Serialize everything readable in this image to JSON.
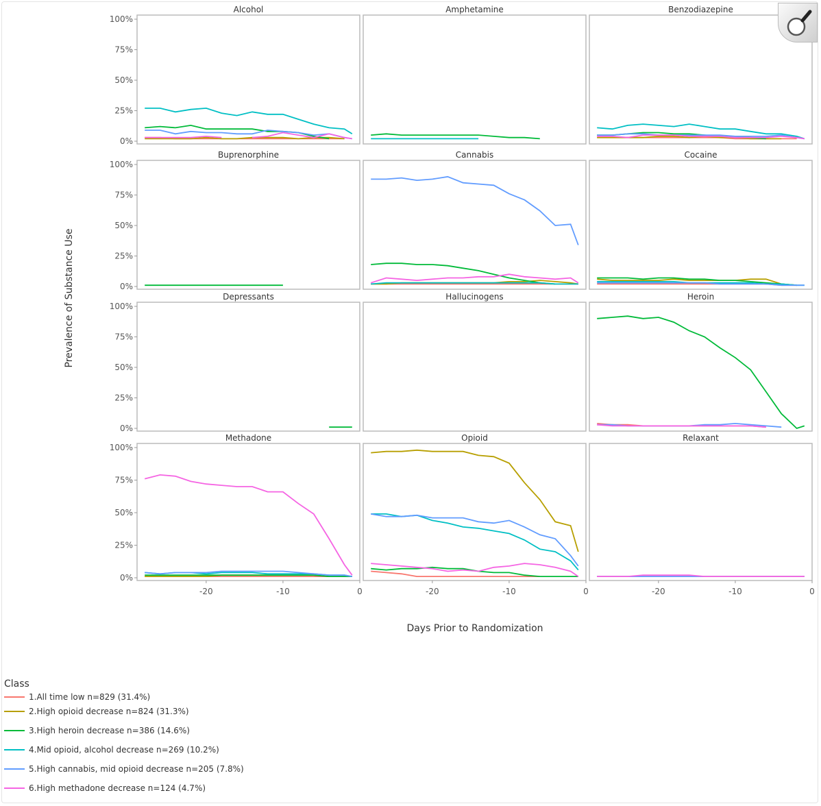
{
  "chart_data": {
    "type": "line",
    "xlabel": "Days Prior to Randomization",
    "ylabel": "Prevalence of Substance Use",
    "xlim": [
      -29,
      0
    ],
    "ylim": [
      0,
      100
    ],
    "xticks": [
      -20,
      -10,
      0
    ],
    "yticks": [
      "0%",
      "25%",
      "50%",
      "75%",
      "100%"
    ],
    "grid": false,
    "legend_placement": "bottom-left",
    "legend_title": "Class",
    "x": [
      -28,
      -26,
      -24,
      -22,
      -20,
      -18,
      -16,
      -14,
      -12,
      -10,
      -8,
      -6,
      -4,
      -2,
      -1
    ],
    "classes": [
      {
        "name": "1.All time low n=829 (31.4%)",
        "color": "#F8766D"
      },
      {
        "name": "2.High opioid decrease n=824 (31.3%)",
        "color": "#B79F00"
      },
      {
        "name": "3.High heroin decrease n=386 (14.6%)",
        "color": "#00BA38"
      },
      {
        "name": "4.Mid opioid, alcohol decrease n=269 (10.2%)",
        "color": "#00BFC4"
      },
      {
        "name": "5.High cannabis, mid opioid decrease n=205 (7.8%)",
        "color": "#619CFF"
      },
      {
        "name": "6.High methadone decrease n=124 (4.7%)",
        "color": "#F564E3"
      }
    ],
    "panels": [
      {
        "title": "Alcohol",
        "series": [
          [
            3,
            3,
            2,
            2,
            2,
            2,
            2,
            2,
            2,
            2,
            2,
            2,
            2,
            2,
            null
          ],
          [
            2,
            2,
            2,
            2,
            3,
            2,
            2,
            3,
            3,
            3,
            2,
            3,
            3,
            2,
            null
          ],
          [
            11,
            12,
            11,
            13,
            10,
            10,
            10,
            10,
            8,
            8,
            7,
            4,
            2,
            null,
            null
          ],
          [
            27,
            27,
            24,
            26,
            27,
            23,
            21,
            24,
            22,
            22,
            18,
            14,
            11,
            10,
            6
          ],
          [
            9,
            9,
            6,
            8,
            7,
            7,
            6,
            6,
            9,
            8,
            7,
            5,
            6,
            3,
            2
          ],
          [
            3,
            3,
            3,
            3,
            4,
            3,
            null,
            3,
            4,
            7,
            5,
            3,
            6,
            3,
            2
          ]
        ]
      },
      {
        "title": "Amphetamine",
        "series": [
          [
            null
          ],
          [
            null
          ],
          [
            5,
            6,
            5,
            5,
            5,
            5,
            5,
            5,
            4,
            3,
            3,
            2,
            null,
            null,
            null
          ],
          [
            2,
            2,
            2,
            2,
            2,
            2,
            2,
            2,
            null,
            null,
            null,
            null,
            null,
            null,
            null
          ],
          [
            null
          ],
          [
            null
          ]
        ]
      },
      {
        "title": "Benzodiazepine",
        "series": [
          [
            3,
            3,
            3,
            3,
            3,
            3,
            3,
            3,
            3,
            2,
            2,
            2,
            2,
            2,
            null
          ],
          [
            3,
            3,
            3,
            3,
            4,
            4,
            3,
            4,
            3,
            3,
            2,
            2,
            2,
            null,
            null
          ],
          [
            5,
            5,
            6,
            7,
            7,
            6,
            6,
            5,
            4,
            4,
            3,
            2,
            null,
            null,
            null
          ],
          [
            11,
            10,
            13,
            14,
            13,
            12,
            14,
            12,
            10,
            10,
            8,
            6,
            6,
            4,
            2
          ],
          [
            5,
            5,
            6,
            6,
            5,
            5,
            5,
            5,
            5,
            4,
            4,
            4,
            5,
            3,
            2
          ],
          [
            4,
            4,
            3,
            5,
            5,
            5,
            4,
            4,
            4,
            3,
            3,
            3,
            4,
            3,
            2
          ]
        ]
      },
      {
        "title": "Buprenorphine",
        "series": [
          [
            null
          ],
          [
            null
          ],
          [
            1,
            1,
            1,
            1,
            1,
            1,
            1,
            1,
            1,
            1,
            null,
            null,
            null,
            null,
            null
          ],
          [
            null
          ],
          [
            null
          ],
          [
            null
          ]
        ]
      },
      {
        "title": "Cannabis",
        "series": [
          [
            2,
            2,
            2,
            2,
            2,
            2,
            2,
            2,
            2,
            2,
            2,
            2,
            2,
            2,
            2
          ],
          [
            2,
            2,
            3,
            3,
            3,
            3,
            3,
            3,
            3,
            4,
            4,
            5,
            4,
            3,
            2
          ],
          [
            18,
            19,
            19,
            18,
            18,
            17,
            15,
            13,
            10,
            7,
            5,
            3,
            2,
            null,
            null
          ],
          [
            2,
            3,
            3,
            3,
            3,
            3,
            3,
            3,
            3,
            3,
            3,
            3,
            2,
            2,
            2
          ],
          [
            88,
            88,
            89,
            87,
            88,
            90,
            85,
            84,
            83,
            76,
            71,
            62,
            50,
            51,
            34
          ],
          [
            3,
            7,
            6,
            5,
            6,
            7,
            7,
            8,
            8,
            10,
            8,
            7,
            6,
            7,
            3
          ]
        ]
      },
      {
        "title": "Cocaine",
        "series": [
          [
            2,
            2,
            2,
            2,
            2,
            2,
            2,
            2,
            2,
            2,
            2,
            2,
            1,
            1,
            null
          ],
          [
            6,
            5,
            5,
            5,
            5,
            6,
            5,
            5,
            5,
            5,
            6,
            6,
            2,
            1,
            null
          ],
          [
            7,
            7,
            7,
            6,
            7,
            7,
            6,
            6,
            5,
            5,
            4,
            3,
            2,
            1,
            null
          ],
          [
            4,
            4,
            4,
            4,
            4,
            4,
            3,
            3,
            3,
            3,
            3,
            2,
            2,
            1,
            1
          ],
          [
            3,
            3,
            3,
            3,
            3,
            3,
            3,
            3,
            2,
            2,
            2,
            2,
            1,
            1,
            1
          ],
          [
            null
          ]
        ]
      },
      {
        "title": "Depressants",
        "series": [
          [
            null
          ],
          [
            null
          ],
          [
            null,
            null,
            null,
            null,
            null,
            null,
            null,
            null,
            null,
            null,
            null,
            null,
            1,
            1,
            1
          ],
          [
            null
          ],
          [
            null
          ],
          [
            null
          ]
        ]
      },
      {
        "title": "Hallucinogens",
        "series": [
          [
            null
          ],
          [
            null
          ],
          [
            null
          ],
          [
            null
          ],
          [
            null
          ],
          [
            null
          ]
        ]
      },
      {
        "title": "Heroin",
        "series": [
          [
            4,
            3,
            3,
            2,
            2,
            2,
            2,
            2,
            2,
            2,
            2,
            1,
            null,
            null,
            null
          ],
          [
            null
          ],
          [
            90,
            91,
            92,
            90,
            91,
            87,
            80,
            75,
            66,
            58,
            48,
            30,
            12,
            0,
            2
          ],
          [
            null
          ],
          [
            3,
            3,
            2,
            2,
            2,
            2,
            2,
            3,
            3,
            4,
            3,
            2,
            1,
            null,
            null
          ],
          [
            3,
            2,
            2,
            2,
            2,
            2,
            2,
            2,
            2,
            2,
            2,
            1,
            null,
            null,
            null
          ]
        ]
      },
      {
        "title": "Methadone",
        "series": [
          [
            1,
            1,
            1,
            1,
            1,
            1,
            1,
            1,
            1,
            1,
            1,
            1,
            1,
            1,
            1
          ],
          [
            1,
            1,
            1,
            1,
            1,
            2,
            2,
            2,
            2,
            2,
            2,
            2,
            1,
            1,
            1
          ],
          [
            2,
            2,
            2,
            2,
            2,
            2,
            2,
            2,
            2,
            2,
            2,
            2,
            1,
            1,
            1
          ],
          [
            4,
            3,
            4,
            4,
            3,
            4,
            4,
            4,
            3,
            3,
            3,
            3,
            2,
            2,
            1
          ],
          [
            4,
            3,
            4,
            4,
            4,
            5,
            5,
            5,
            5,
            5,
            4,
            3,
            2,
            2,
            1
          ],
          [
            76,
            79,
            78,
            74,
            72,
            71,
            70,
            70,
            66,
            66,
            57,
            49,
            30,
            10,
            2
          ]
        ]
      },
      {
        "title": "Opioid",
        "series": [
          [
            5,
            4,
            3,
            1,
            1,
            1,
            1,
            1,
            1,
            1,
            1,
            1,
            null,
            null,
            null
          ],
          [
            96,
            97,
            97,
            98,
            97,
            97,
            97,
            94,
            93,
            88,
            73,
            60,
            43,
            40,
            20
          ],
          [
            7,
            6,
            7,
            7,
            8,
            7,
            7,
            5,
            4,
            4,
            2,
            1,
            1,
            1,
            1
          ],
          [
            49,
            49,
            47,
            48,
            44,
            42,
            39,
            38,
            36,
            34,
            29,
            22,
            20,
            13,
            6
          ],
          [
            49,
            47,
            47,
            48,
            46,
            46,
            46,
            43,
            42,
            44,
            39,
            33,
            30,
            17,
            9
          ],
          [
            11,
            10,
            9,
            8,
            7,
            5,
            6,
            5,
            8,
            9,
            11,
            10,
            8,
            5,
            1
          ]
        ]
      },
      {
        "title": "Relaxant",
        "series": [
          [
            1,
            1,
            1,
            1,
            1,
            1,
            1,
            1,
            1,
            1,
            1,
            1,
            1,
            1,
            1
          ],
          [
            null
          ],
          [
            null
          ],
          [
            null
          ],
          [
            1,
            1,
            1,
            1,
            1,
            1,
            1,
            1,
            1,
            1,
            1,
            1,
            1,
            1,
            1
          ],
          [
            1,
            1,
            1,
            2,
            2,
            2,
            2,
            1,
            1,
            1,
            1,
            1,
            1,
            1,
            1
          ]
        ]
      }
    ]
  },
  "zoom_icon": "magnifier-icon"
}
